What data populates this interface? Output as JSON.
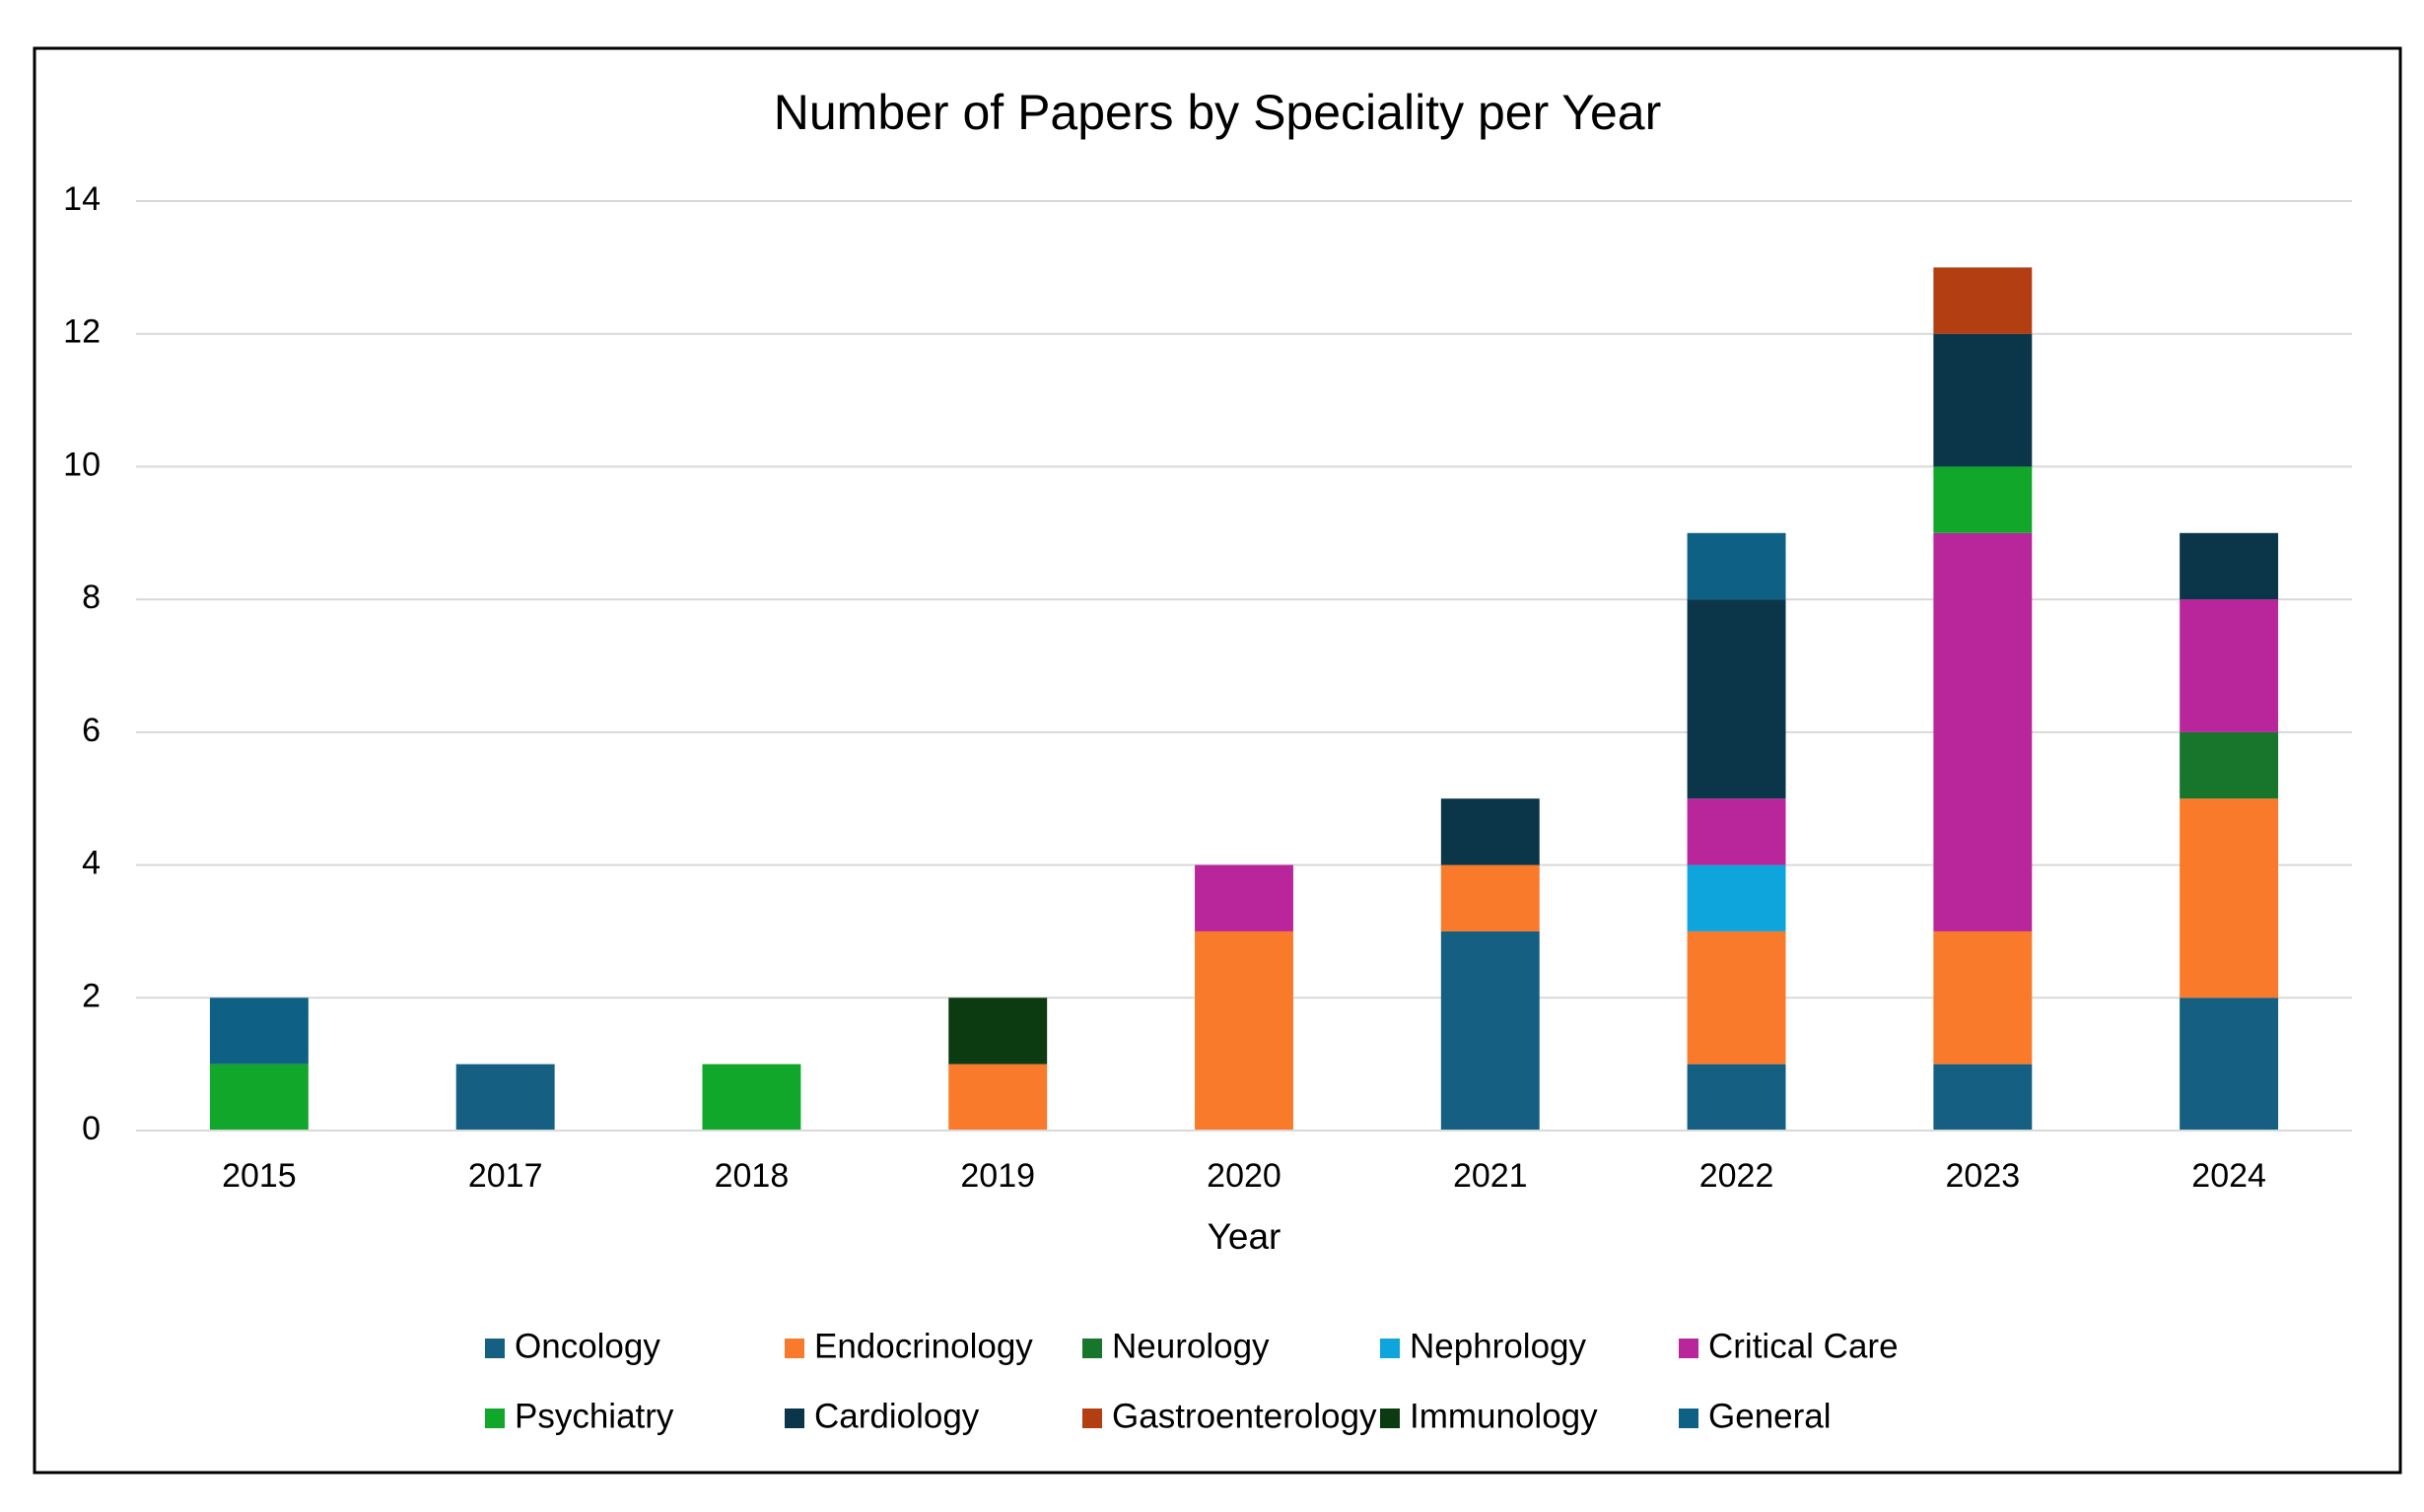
{
  "chart_data": {
    "type": "stacked_bar",
    "title": "Number of Papers by Speciality per Year",
    "x_label": "Year",
    "categories": [
      "2015",
      "2017",
      "2018",
      "2019",
      "2020",
      "2021",
      "2022",
      "2023",
      "2024"
    ],
    "series": [
      {
        "name": "Oncology",
        "color": "#156082",
        "values": [
          0,
          1,
          0,
          0,
          0,
          3,
          1,
          1,
          2
        ]
      },
      {
        "name": "Endocrinology",
        "color": "#f97a2b",
        "values": [
          0,
          0,
          0,
          1,
          3,
          1,
          2,
          2,
          3
        ]
      },
      {
        "name": "Neurology",
        "color": "#17752c",
        "values": [
          0,
          0,
          0,
          0,
          0,
          0,
          0,
          0,
          1
        ]
      },
      {
        "name": "Nephrology",
        "color": "#0ea5dd",
        "values": [
          0,
          0,
          0,
          0,
          0,
          0,
          1,
          0,
          0
        ]
      },
      {
        "name": "Critical Care",
        "color": "#b9269b",
        "values": [
          0,
          0,
          0,
          0,
          1,
          0,
          1,
          6,
          2
        ]
      },
      {
        "name": "Psychiatry",
        "color": "#11a72a",
        "values": [
          1,
          0,
          1,
          0,
          0,
          0,
          0,
          1,
          0
        ]
      },
      {
        "name": "Cardiology",
        "color": "#0b3549",
        "values": [
          0,
          0,
          0,
          0,
          0,
          1,
          3,
          2,
          1
        ]
      },
      {
        "name": "Gastroenterology",
        "color": "#b33e12",
        "values": [
          0,
          0,
          0,
          0,
          0,
          0,
          0,
          1,
          0
        ]
      },
      {
        "name": "Immunology",
        "color": "#0c3b12",
        "values": [
          0,
          0,
          0,
          1,
          0,
          0,
          0,
          0,
          0
        ]
      },
      {
        "name": "General",
        "color": "#0e6185",
        "values": [
          1,
          0,
          0,
          0,
          0,
          0,
          1,
          0,
          0
        ]
      }
    ],
    "ylim": [
      0,
      14
    ],
    "yticks": [
      0,
      2,
      4,
      6,
      8,
      10,
      12,
      14
    ],
    "grid": true,
    "legend": "bottom"
  }
}
